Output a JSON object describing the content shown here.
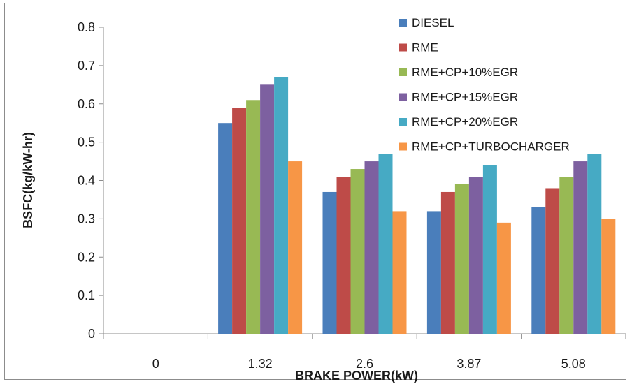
{
  "chart_data": {
    "type": "bar",
    "title": "",
    "xlabel": "BRAKE POWER(kW)",
    "ylabel": "BSFC(kg/kW-hr)",
    "categories": [
      "0",
      "1.32",
      "2.6",
      "3.87",
      "5.08"
    ],
    "ylim": [
      0,
      0.8
    ],
    "yticks": [
      "0",
      "0.1",
      "0.2",
      "0.3",
      "0.4",
      "0.5",
      "0.6",
      "0.7",
      "0.8"
    ],
    "grid": false,
    "legend_position": "top-right",
    "series": [
      {
        "name": "DIESEL",
        "color": "#4a7ebb",
        "values": [
          0,
          0.55,
          0.37,
          0.32,
          0.33
        ]
      },
      {
        "name": "RME",
        "color": "#be4b48",
        "values": [
          0,
          0.59,
          0.41,
          0.37,
          0.38
        ]
      },
      {
        "name": "RME+CP+10%EGR",
        "color": "#98b954",
        "values": [
          0,
          0.61,
          0.43,
          0.39,
          0.41
        ]
      },
      {
        "name": "RME+CP+15%EGR",
        "color": "#7d60a0",
        "values": [
          0,
          0.65,
          0.45,
          0.41,
          0.45
        ]
      },
      {
        "name": "RME+CP+20%EGR",
        "color": "#46aac4",
        "values": [
          0,
          0.67,
          0.47,
          0.44,
          0.47
        ]
      },
      {
        "name": "RME+CP+TURBOCHARGER",
        "color": "#f79646",
        "values": [
          0,
          0.45,
          0.32,
          0.29,
          0.3
        ]
      }
    ]
  }
}
